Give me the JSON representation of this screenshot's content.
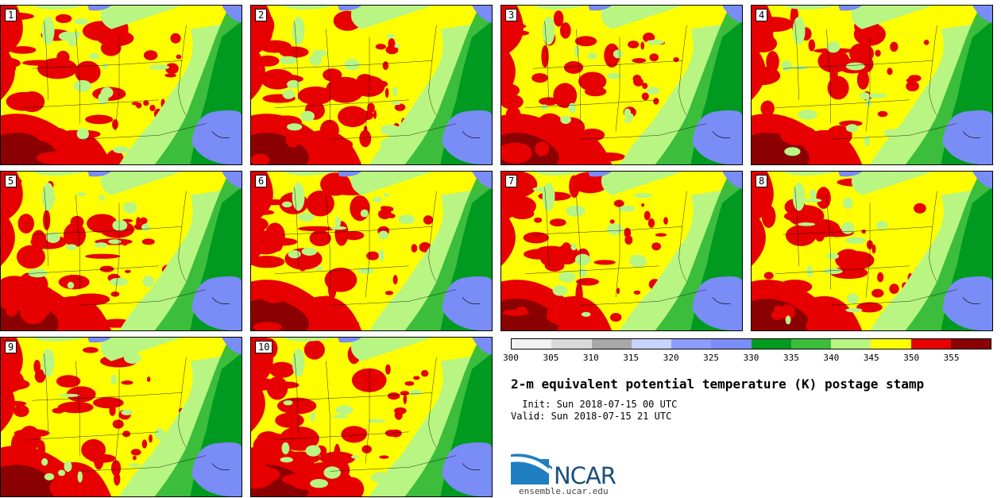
{
  "title": "2-m equivalent potential temperature (K) postage stamp",
  "init": " Init: Sun 2018-07-15 00 UTC",
  "valid": "Valid: Sun 2018-07-15 21 UTC",
  "members": [
    "1",
    "2",
    "3",
    "4",
    "5",
    "6",
    "7",
    "8",
    "9",
    "10"
  ],
  "colorbar": {
    "colors": [
      "#f2f2f2",
      "#d9d9d9",
      "#a8a8a8",
      "#c6d4ff",
      "#8c9dff",
      "#7a8cf5",
      "#009a20",
      "#3cbd3c",
      "#b8f582",
      "#ffff00",
      "#e60000",
      "#8b0000"
    ],
    "ticks": [
      "300",
      "305",
      "310",
      "315",
      "320",
      "325",
      "330",
      "335",
      "340",
      "345",
      "350",
      "355"
    ]
  },
  "logo": {
    "text": "NCAR",
    "site": "ensemble.ucar.edu"
  },
  "map_colors": {
    "ocean": "#7a8cf5",
    "lake": "#7a8cf5",
    "deep_green": "#009a20",
    "mid_green": "#3cbd3c",
    "light_green": "#b8f582",
    "yellow": "#ffff00",
    "red": "#e60000",
    "dark_red": "#8b0000",
    "coast": "#000000"
  }
}
